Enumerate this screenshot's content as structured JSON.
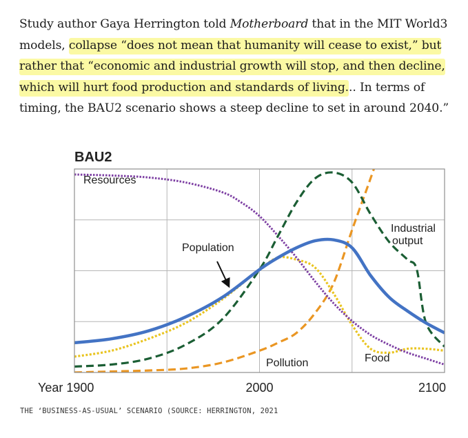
{
  "article": {
    "p_intro": "Study author Gaya Herrington told ",
    "p_publication": "Motherboard",
    "p_mid": " that in the MIT World3 models, ",
    "p_quote": "collapse “does not mean that humanity will cease to exist,” but rather that “economic and industrial growth will stop, and then decline, which will hurt food production and standards of living.",
    "p_tail": ".. In terms of timing, the BAU2 scenario shows a steep decline to set in around 2040.”"
  },
  "chart_data": {
    "type": "line",
    "title": "BAU2",
    "xlabel": "",
    "ylabel": "",
    "xlim": [
      1900,
      2100
    ],
    "x_ticks": [
      "Year 1900",
      "2000",
      "2100"
    ],
    "grid": true,
    "series": [
      {
        "name": "Resources",
        "color": "#7d3fa3",
        "style": "dotted",
        "x": [
          1900,
          1920,
          1940,
          1960,
          1980,
          1990,
          2000,
          2010,
          2020,
          2030,
          2040,
          2050,
          2060,
          2070,
          2080,
          2090,
          2100
        ],
        "y": [
          1.0,
          0.995,
          0.985,
          0.96,
          0.91,
          0.86,
          0.79,
          0.69,
          0.58,
          0.46,
          0.35,
          0.26,
          0.19,
          0.14,
          0.1,
          0.07,
          0.04
        ]
      },
      {
        "name": "Population",
        "color": "#4373c4",
        "style": "solid",
        "x": [
          1900,
          1920,
          1940,
          1960,
          1980,
          2000,
          2010,
          2020,
          2030,
          2040,
          2050,
          2060,
          2070,
          2080,
          2090,
          2100
        ],
        "y": [
          0.15,
          0.17,
          0.21,
          0.28,
          0.38,
          0.52,
          0.58,
          0.63,
          0.665,
          0.67,
          0.63,
          0.49,
          0.38,
          0.31,
          0.25,
          0.2
        ]
      },
      {
        "name": "Industrial output",
        "color": "#1b5e34",
        "style": "dashed",
        "x": [
          1900,
          1920,
          1940,
          1960,
          1980,
          2000,
          2010,
          2020,
          2030,
          2040,
          2050,
          2060,
          2070,
          2080,
          2085,
          2090,
          2100
        ],
        "y": [
          0.03,
          0.04,
          0.07,
          0.14,
          0.27,
          0.52,
          0.69,
          0.86,
          0.98,
          1.01,
          0.96,
          0.8,
          0.66,
          0.57,
          0.52,
          0.25,
          0.13
        ]
      },
      {
        "name": "Food",
        "color": "#e9c420",
        "style": "dotted",
        "x": [
          1900,
          1920,
          1940,
          1960,
          1980,
          2000,
          2010,
          2020,
          2030,
          2040,
          2050,
          2060,
          2070,
          2080,
          2090,
          2100
        ],
        "y": [
          0.08,
          0.11,
          0.17,
          0.25,
          0.37,
          0.52,
          0.58,
          0.57,
          0.53,
          0.4,
          0.24,
          0.12,
          0.1,
          0.12,
          0.12,
          0.11
        ]
      },
      {
        "name": "Pollution",
        "color": "#ea9623",
        "style": "dashed",
        "x": [
          1900,
          1920,
          1940,
          1960,
          1980,
          2000,
          2010,
          2020,
          2030,
          2040,
          2050,
          2060,
          2070
        ],
        "y": [
          0.0,
          0.005,
          0.01,
          0.02,
          0.05,
          0.11,
          0.15,
          0.2,
          0.3,
          0.45,
          0.72,
          0.98,
          1.25
        ]
      }
    ],
    "annotations": [
      {
        "text": "Population",
        "arrow": true
      }
    ]
  },
  "figure": {
    "caption": "THE ‘BUSINESS-AS-USUAL’ SCENARIO (SOURCE: HERRINGTON, 2021"
  }
}
